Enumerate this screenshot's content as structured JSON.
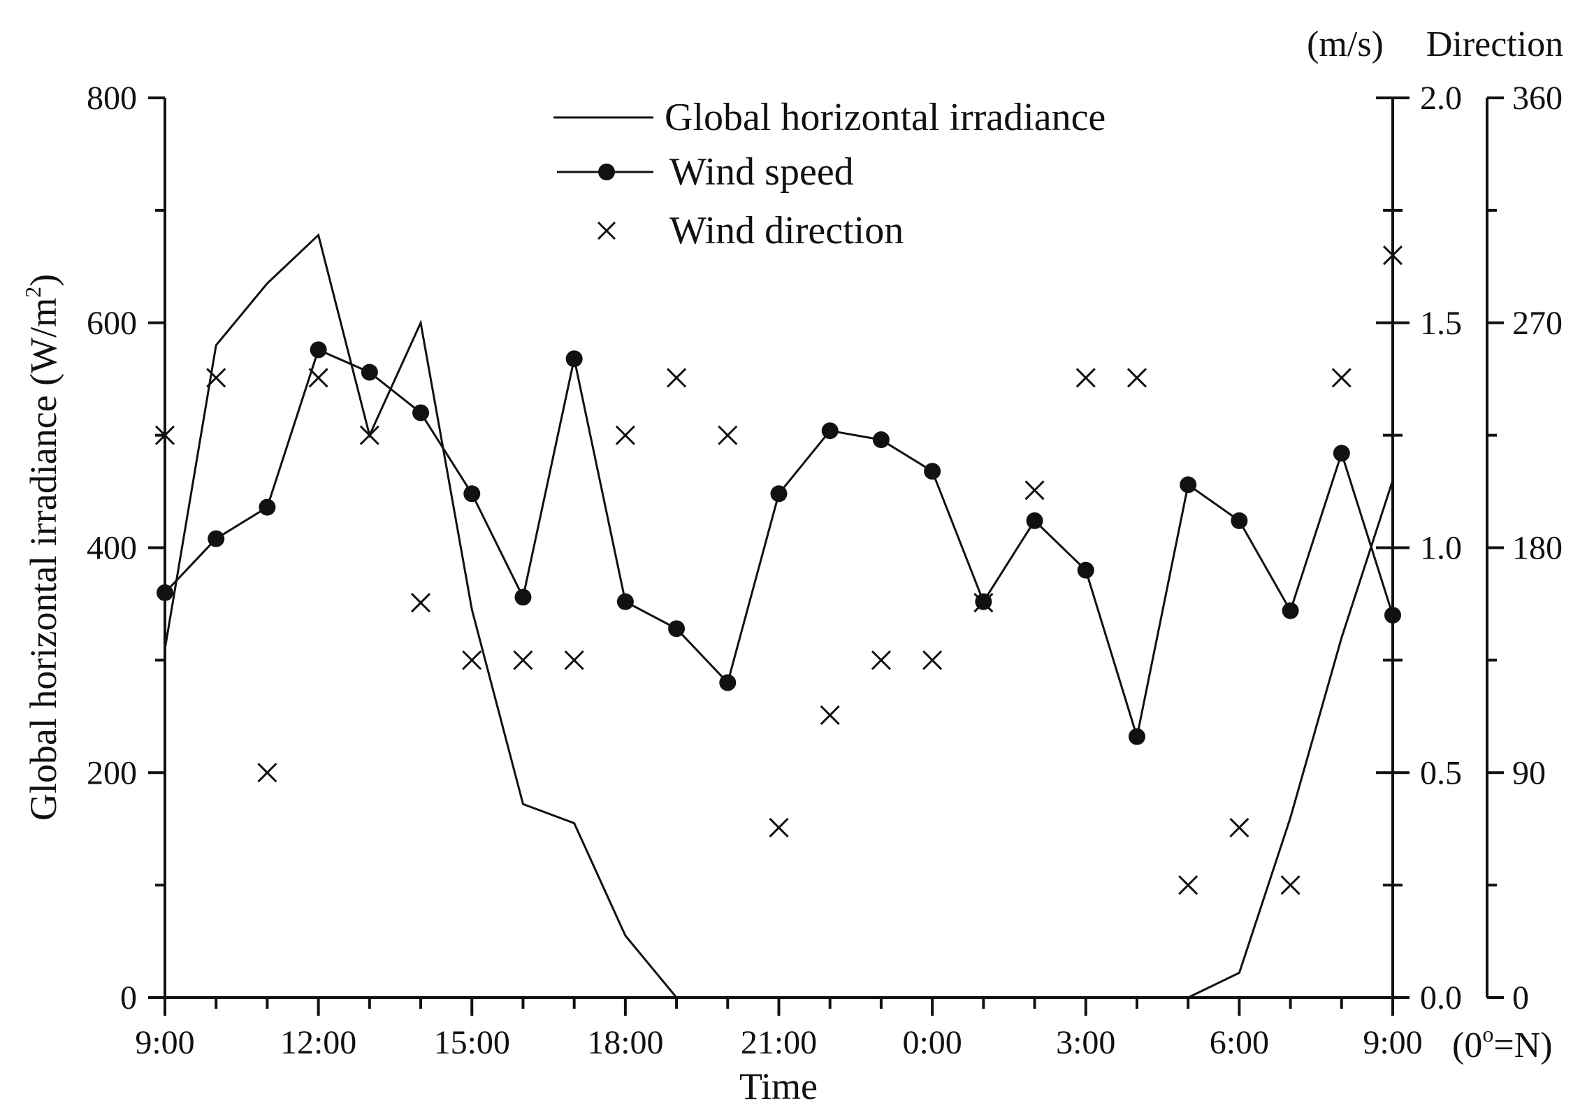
{
  "chart_data": {
    "type": "line",
    "xlabel": "Time",
    "x_ticks": [
      "9:00",
      "12:00",
      "15:00",
      "18:00",
      "21:00",
      "0:00",
      "3:00",
      "6:00",
      "9:00"
    ],
    "x_hours": [
      9,
      10,
      11,
      12,
      13,
      14,
      15,
      16,
      17,
      18,
      19,
      20,
      21,
      22,
      23,
      24,
      25,
      26,
      27,
      28,
      29,
      30,
      31,
      32,
      33
    ],
    "ylabel_left": "Global horizontal irradiance (W/m",
    "ylabel_left_sup": "2",
    "ylabel_left_end": ")",
    "ylim_left": [
      0,
      800
    ],
    "yticks_left": [
      "0",
      "200",
      "400",
      "600",
      "800"
    ],
    "ylabel_speed": "(m/s)",
    "ylim_speed": [
      0,
      2.0
    ],
    "yticks_speed": [
      "0.0",
      "0.5",
      "1.0",
      "1.5",
      "2.0"
    ],
    "ylabel_direction": "Direction",
    "ylim_direction": [
      0,
      360
    ],
    "yticks_direction": [
      "0",
      "90",
      "180",
      "270",
      "360"
    ],
    "direction_note_prefix": "(0",
    "direction_note_sup": "o",
    "direction_note_suffix": "=N)",
    "legend_position": "top-center",
    "series": [
      {
        "name": "Global horizontal irradiance",
        "axis": "left",
        "style": "line",
        "values": [
          310,
          580,
          635,
          678,
          500,
          600,
          345,
          172,
          155,
          55,
          0,
          0,
          0,
          0,
          0,
          0,
          0,
          0,
          0,
          0,
          0,
          22,
          160,
          320,
          460
        ]
      },
      {
        "name": "Wind speed",
        "axis": "speed",
        "style": "line-markers",
        "values": [
          0.9,
          1.02,
          1.09,
          1.44,
          1.39,
          1.3,
          1.12,
          0.89,
          1.42,
          0.88,
          0.82,
          0.7,
          1.12,
          1.26,
          1.24,
          1.17,
          0.88,
          1.06,
          0.95,
          0.58,
          1.14,
          1.06,
          0.86,
          1.21,
          0.85
        ]
      },
      {
        "name": "Wind direction",
        "axis": "direction",
        "style": "markers-x",
        "values": [
          225,
          248,
          90,
          248,
          225,
          158,
          135,
          135,
          135,
          225,
          248,
          225,
          68,
          113,
          135,
          135,
          158,
          203,
          248,
          248,
          45,
          68,
          45,
          248,
          297
        ]
      }
    ]
  }
}
